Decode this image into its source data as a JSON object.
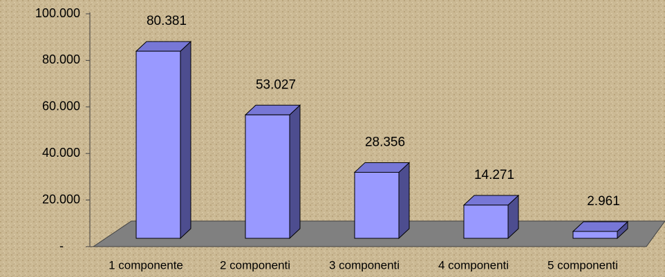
{
  "chart_data": {
    "type": "bar3d",
    "categories": [
      "1 componente",
      "2 componenti",
      "3 componenti",
      "4 componenti",
      "5 componenti"
    ],
    "values": [
      80381,
      53027,
      28356,
      14271,
      2961
    ],
    "value_labels": [
      "80.381",
      "53.027",
      "28.356",
      "14.271",
      "2.961"
    ],
    "ylim": [
      0,
      100000
    ],
    "yticks": [
      {
        "value": 0,
        "label": "-"
      },
      {
        "value": 20000,
        "label": "20.000"
      },
      {
        "value": 40000,
        "label": "40.000"
      },
      {
        "value": 60000,
        "label": "60.000"
      },
      {
        "value": 80000,
        "label": "80.000"
      },
      {
        "value": 100000,
        "label": "100.000"
      }
    ],
    "color": "#9999ff"
  }
}
